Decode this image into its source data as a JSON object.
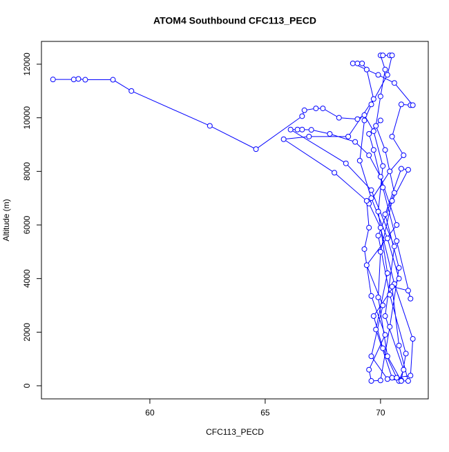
{
  "chart_data": {
    "type": "line",
    "title": "ATOM4 Southbound CFC113_PECD",
    "x_label": "CFC113_PECD",
    "y_label": "Altitude (m)",
    "color": "#0000ff",
    "markers": true,
    "xlim": [
      55.3,
      72.07
    ],
    "ylim": [
      -489,
      12850
    ],
    "xticks": [
      60,
      65,
      70
    ],
    "yticks": [
      0,
      2000,
      4000,
      6000,
      8000,
      10000,
      12000
    ],
    "x": [
      55.8,
      56.7,
      56.9,
      57.2,
      58.4,
      59.2,
      62.6,
      64.6,
      66.6,
      66.7,
      67.2,
      67.5,
      68.2,
      69.0,
      69.3,
      69.7,
      70.1,
      69.9,
      70.3,
      69.8,
      70.5,
      70.8,
      71.0,
      70.2,
      70.6,
      69.6,
      68.5,
      66.1,
      66.4,
      66.6,
      67.0,
      67.8,
      68.9,
      69.5,
      70.0,
      70.7,
      69.4,
      70.1,
      69.6,
      70.3,
      70.9,
      71.1,
      70.4,
      69.9,
      70.6,
      70.2,
      69.8,
      70.0,
      70.2,
      70.0,
      70.1,
      70.4,
      70.5,
      70.3,
      69.6,
      69.3,
      69.1,
      69.6,
      70.3,
      70.8,
      69.7,
      70.1,
      70.7,
      71.3,
      71.4,
      70.6,
      70.0,
      69.5,
      70.4,
      71.0,
      70.5,
      70.9,
      71.3,
      71.4,
      70.6,
      69.9,
      68.8,
      69.0,
      69.2,
      69.4,
      69.7,
      68.6,
      66.9,
      65.8,
      68.0,
      69.4,
      69.5,
      69.3,
      69.6,
      70.2,
      69.5,
      69.6,
      70.0,
      70.4,
      70.8,
      70.2,
      70.9,
      71.2,
      70.5,
      70.0,
      69.9,
      70.3,
      70.9,
      71.2,
      70.8,
      70.5,
      71.2,
      71.3,
      70.7,
      70.1,
      69.7,
      69.5,
      70.0
    ],
    "values": [
      11430,
      11430,
      11450,
      11420,
      11420,
      11000,
      9700,
      8830,
      10060,
      10280,
      10350,
      10350,
      10000,
      9950,
      10100,
      9500,
      8200,
      6500,
      4200,
      2100,
      300,
      180,
      600,
      2600,
      5200,
      7300,
      8300,
      9560,
      9560,
      9560,
      9550,
      9400,
      9100,
      8600,
      7800,
      6000,
      4500,
      3000,
      1100,
      250,
      200,
      1200,
      3400,
      5600,
      7200,
      8800,
      9700,
      10800,
      11800,
      12330,
      12330,
      12330,
      12330,
      11600,
      10500,
      9900,
      8400,
      7000,
      5500,
      4000,
      2600,
      1400,
      300,
      380,
      1750,
      3800,
      5900,
      6800,
      8000,
      8600,
      9300,
      10500,
      10470,
      10470,
      11300,
      11600,
      12030,
      12030,
      12030,
      11800,
      10700,
      9300,
      9300,
      9200,
      7950,
      6900,
      5900,
      5100,
      3350,
      1900,
      600,
      180,
      200,
      2200,
      4400,
      6400,
      8100,
      8060,
      6900,
      5000,
      3300,
      1100,
      180,
      180,
      1500,
      3700,
      3550,
      3250,
      5400,
      7400,
      8800,
      9400,
      9900
    ]
  }
}
